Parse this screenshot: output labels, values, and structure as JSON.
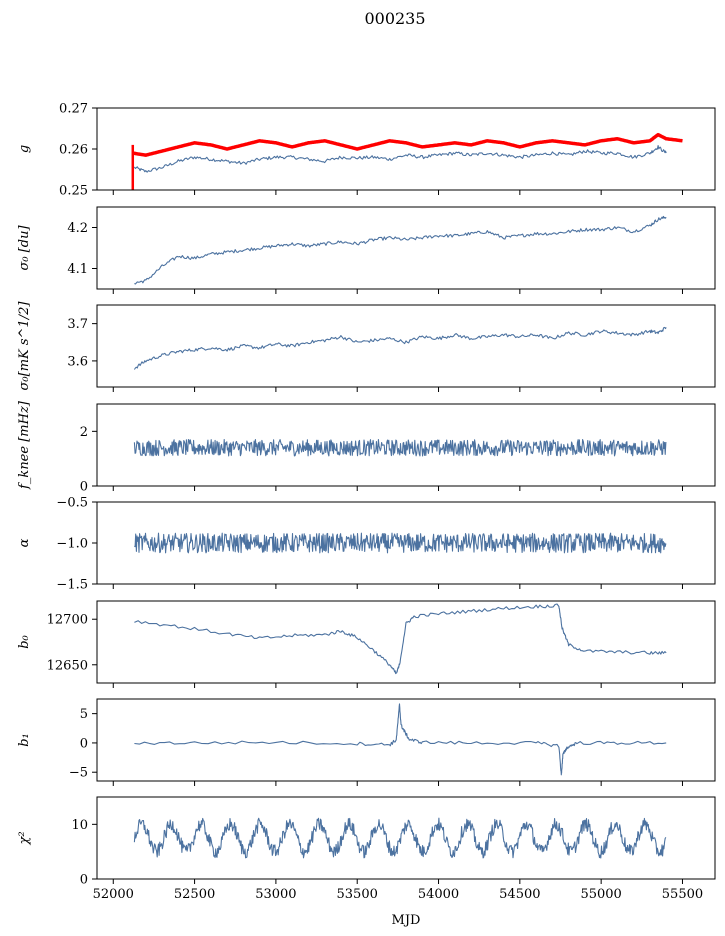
{
  "figure": {
    "suptitle": "000235",
    "xlabel": "MJD",
    "line_color": "#4c72a0",
    "reference_color": "#ff0000"
  },
  "chart_data": [
    {
      "type": "line",
      "ylabel": "g",
      "xlim": [
        51900,
        55700
      ],
      "ylim": [
        0.25,
        0.27
      ],
      "yticks": [
        0.25,
        0.26,
        0.27
      ],
      "ytick_labels": [
        "0.25",
        "0.26",
        "0.27"
      ],
      "series": [
        {
          "style": "thin",
          "color": "#4c72a0",
          "x": [
            52130,
            52200,
            52300,
            52400,
            52500,
            52600,
            52700,
            52800,
            52900,
            53000,
            53100,
            53200,
            53300,
            53400,
            53500,
            53600,
            53700,
            53800,
            53900,
            54000,
            54100,
            54200,
            54300,
            54400,
            54500,
            54600,
            54700,
            54800,
            54900,
            55000,
            55100,
            55200,
            55300,
            55350,
            55400
          ],
          "y": [
            0.2555,
            0.2545,
            0.2555,
            0.257,
            0.258,
            0.2575,
            0.257,
            0.2565,
            0.2575,
            0.258,
            0.258,
            0.2575,
            0.257,
            0.258,
            0.2578,
            0.258,
            0.2575,
            0.2585,
            0.258,
            0.2585,
            0.259,
            0.2585,
            0.259,
            0.2585,
            0.258,
            0.2585,
            0.259,
            0.2585,
            0.2595,
            0.259,
            0.259,
            0.258,
            0.259,
            0.2605,
            0.259
          ]
        },
        {
          "style": "thick",
          "color": "#ff0000",
          "x": [
            52120,
            52200,
            52300,
            52400,
            52500,
            52600,
            52700,
            52800,
            52900,
            53000,
            53100,
            53200,
            53300,
            53400,
            53500,
            53600,
            53700,
            53800,
            53900,
            54000,
            54100,
            54200,
            54300,
            54400,
            54500,
            54600,
            54700,
            54800,
            54900,
            55000,
            55100,
            55200,
            55300,
            55350,
            55400,
            55500
          ],
          "y": [
            0.259,
            0.2585,
            0.2595,
            0.2605,
            0.2615,
            0.261,
            0.26,
            0.261,
            0.262,
            0.2615,
            0.2605,
            0.2615,
            0.262,
            0.261,
            0.26,
            0.261,
            0.262,
            0.2615,
            0.2605,
            0.261,
            0.2615,
            0.261,
            0.262,
            0.2615,
            0.2605,
            0.2615,
            0.262,
            0.2615,
            0.261,
            0.262,
            0.2625,
            0.2615,
            0.262,
            0.2635,
            0.2625,
            0.262
          ]
        }
      ]
    },
    {
      "type": "line",
      "ylabel": "σ₀ [du]",
      "xlim": [
        51900,
        55700
      ],
      "ylim": [
        4.05,
        4.25
      ],
      "yticks": [
        4.1,
        4.2
      ],
      "ytick_labels": [
        "4.1",
        "4.2"
      ],
      "series": [
        {
          "style": "thin",
          "color": "#4c72a0",
          "x": [
            52130,
            52200,
            52300,
            52400,
            52500,
            52600,
            52700,
            52800,
            52900,
            53000,
            53100,
            53200,
            53300,
            53400,
            53500,
            53600,
            53700,
            53800,
            53900,
            54000,
            54100,
            54200,
            54300,
            54400,
            54500,
            54600,
            54700,
            54800,
            54900,
            55000,
            55100,
            55200,
            55300,
            55350,
            55400
          ],
          "y": [
            4.065,
            4.07,
            4.105,
            4.13,
            4.125,
            4.135,
            4.14,
            4.145,
            4.15,
            4.155,
            4.16,
            4.155,
            4.16,
            4.165,
            4.16,
            4.17,
            4.175,
            4.17,
            4.175,
            4.18,
            4.18,
            4.185,
            4.19,
            4.175,
            4.18,
            4.185,
            4.185,
            4.19,
            4.195,
            4.195,
            4.2,
            4.19,
            4.205,
            4.22,
            4.225
          ]
        }
      ]
    },
    {
      "type": "line",
      "ylabel": "σ₀[mK s^1/2]",
      "xlim": [
        51900,
        55700
      ],
      "ylim": [
        3.53,
        3.75
      ],
      "yticks": [
        3.6,
        3.7
      ],
      "ytick_labels": [
        "3.6",
        "3.7"
      ],
      "series": [
        {
          "style": "thin",
          "color": "#4c72a0",
          "x": [
            52130,
            52200,
            52300,
            52400,
            52500,
            52600,
            52700,
            52800,
            52900,
            53000,
            53100,
            53200,
            53300,
            53400,
            53500,
            53600,
            53700,
            53800,
            53900,
            54000,
            54100,
            54200,
            54300,
            54400,
            54500,
            54600,
            54700,
            54800,
            54900,
            55000,
            55100,
            55200,
            55300,
            55350,
            55400
          ],
          "y": [
            3.58,
            3.6,
            3.615,
            3.625,
            3.63,
            3.635,
            3.63,
            3.64,
            3.635,
            3.645,
            3.64,
            3.65,
            3.655,
            3.665,
            3.65,
            3.655,
            3.66,
            3.65,
            3.665,
            3.66,
            3.67,
            3.66,
            3.665,
            3.67,
            3.665,
            3.67,
            3.66,
            3.675,
            3.67,
            3.68,
            3.675,
            3.67,
            3.68,
            3.675,
            3.69
          ]
        }
      ]
    },
    {
      "type": "line",
      "ylabel": "f_knee [mHz]",
      "xlim": [
        51900,
        55700
      ],
      "ylim": [
        0,
        3
      ],
      "yticks": [
        0,
        2
      ],
      "ytick_labels": [
        "0",
        "2"
      ],
      "series": [
        {
          "style": "noise",
          "color": "#4c72a0",
          "x_start": 52130,
          "x_end": 55400,
          "center": 1.4,
          "amplitude": 0.3
        }
      ]
    },
    {
      "type": "line",
      "ylabel": "α",
      "xlim": [
        51900,
        55700
      ],
      "ylim": [
        -1.5,
        -0.5
      ],
      "yticks": [
        -1.5,
        -1.0,
        -0.5
      ],
      "ytick_labels": [
        "−1.5",
        "−1.0",
        "−0.5"
      ],
      "series": [
        {
          "style": "noise",
          "color": "#4c72a0",
          "x_start": 52130,
          "x_end": 55400,
          "center": -1.0,
          "amplitude": 0.12
        }
      ]
    },
    {
      "type": "line",
      "ylabel": "b₀",
      "xlim": [
        51900,
        55700
      ],
      "ylim": [
        12630,
        12720
      ],
      "yticks": [
        12650,
        12700
      ],
      "ytick_labels": [
        "12650",
        "12700"
      ],
      "series": [
        {
          "style": "thin",
          "color": "#4c72a0",
          "x": [
            52130,
            52400,
            52700,
            52900,
            53100,
            53300,
            53400,
            53500,
            53600,
            53700,
            53740,
            53760,
            53800,
            53850,
            54000,
            54200,
            54400,
            54600,
            54740,
            54760,
            54800,
            54900,
            55100,
            55300,
            55400
          ],
          "y": [
            12698,
            12692,
            12684,
            12679,
            12682,
            12683,
            12687,
            12680,
            12666,
            12650,
            12640,
            12650,
            12695,
            12703,
            12706,
            12709,
            12712,
            12714,
            12715,
            12690,
            12672,
            12665,
            12664,
            12663,
            12663
          ]
        }
      ]
    },
    {
      "type": "line",
      "ylabel": "b₁",
      "xlim": [
        51900,
        55700
      ],
      "ylim": [
        -6.5,
        7.5
      ],
      "yticks": [
        -5,
        0,
        5
      ],
      "ytick_labels": [
        "−5",
        "0",
        "5"
      ],
      "series": [
        {
          "style": "thin",
          "color": "#4c72a0",
          "x": [
            52130,
            52500,
            53000,
            53500,
            53700,
            53740,
            53760,
            53770,
            53790,
            53820,
            53900,
            54200,
            54600,
            54740,
            54755,
            54765,
            54790,
            54850,
            55100,
            55400
          ],
          "y": [
            0,
            0,
            0.1,
            -0.1,
            -0.3,
            0.5,
            6.5,
            3.0,
            2.0,
            0.6,
            0.1,
            0,
            0,
            -0.5,
            -5.5,
            -2.0,
            -0.8,
            0,
            0,
            0
          ]
        }
      ]
    },
    {
      "type": "line",
      "ylabel": "χ²",
      "xlim": [
        51900,
        55700
      ],
      "ylim": [
        0,
        15
      ],
      "yticks": [
        0,
        10
      ],
      "ytick_labels": [
        "0",
        "10"
      ],
      "xticks": [
        52000,
        52500,
        53000,
        53500,
        54000,
        54500,
        55000,
        55500
      ],
      "xtick_labels": [
        "52000",
        "52500",
        "53000",
        "53500",
        "54000",
        "54500",
        "55000",
        "55500"
      ],
      "series": [
        {
          "style": "periodic",
          "color": "#4c72a0",
          "x_start": 52130,
          "x_end": 55400,
          "center": 7.5,
          "amplitude": 2.5,
          "period": 182
        }
      ]
    }
  ]
}
